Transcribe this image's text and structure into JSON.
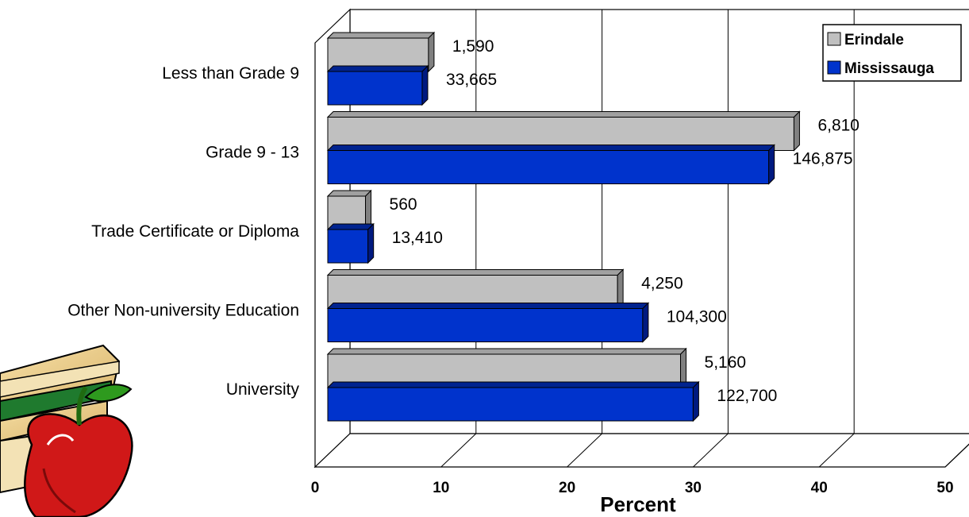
{
  "chart_data": {
    "type": "bar",
    "orientation": "horizontal",
    "style": "3d",
    "categories": [
      "Less than Grade 9",
      "Grade 9 - 13",
      "Trade Certificate or Diploma",
      "Other Non-university Education",
      "University"
    ],
    "series": [
      {
        "name": "Erindale",
        "color": "#c0c0c0",
        "values": [
          9,
          38,
          4,
          24,
          29
        ],
        "labels": [
          "1,590",
          "6,810",
          "560",
          "4,250",
          "5,160"
        ]
      },
      {
        "name": "Mississauga",
        "color": "#0033cc",
        "values": [
          8.5,
          36,
          4.2,
          26,
          30
        ],
        "labels": [
          "33,665",
          "146,875",
          "13,410",
          "104,300",
          "122,700"
        ]
      }
    ],
    "xlabel": "Percent",
    "xlim": [
      0,
      50
    ],
    "xticks": [
      "0",
      "10",
      "20",
      "30",
      "40",
      "50"
    ],
    "grid": true,
    "legend_position": "top-right"
  },
  "decoration": {
    "clipart_icon": "apple-on-books-icon"
  }
}
